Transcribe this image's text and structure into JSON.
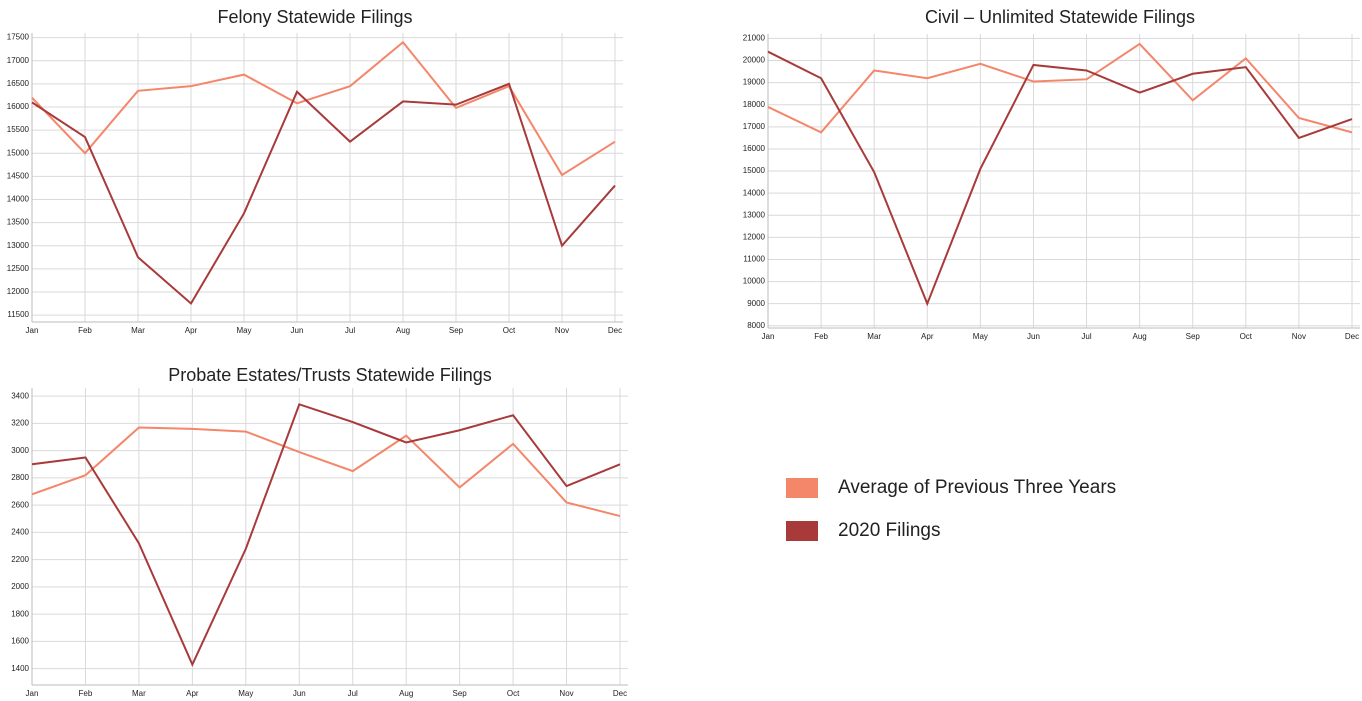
{
  "chart_data": [
    {
      "type": "line",
      "title": "Felony Statewide Filings",
      "categories": [
        "Jan",
        "Feb",
        "Mar",
        "Apr",
        "May",
        "Jun",
        "Jul",
        "Aug",
        "Sep",
        "Oct",
        "Nov",
        "Dec"
      ],
      "series": [
        {
          "name": "Average of Previous Three Years",
          "color": "#f4866a",
          "values": [
            16200,
            15000,
            16350,
            16450,
            16700,
            16080,
            16450,
            17400,
            15980,
            16450,
            14530,
            15250
          ]
        },
        {
          "name": "2020 Filings",
          "color": "#a83a3a",
          "values": [
            16100,
            15350,
            12750,
            11750,
            13700,
            16330,
            15250,
            16120,
            16050,
            16500,
            13000,
            14300
          ]
        }
      ],
      "ylim": [
        11350,
        17600
      ],
      "yticks": [
        11500,
        12000,
        12500,
        13000,
        13500,
        14000,
        14500,
        15000,
        15500,
        16000,
        16500,
        17000,
        17500
      ],
      "grid": true
    },
    {
      "type": "line",
      "title": "Civil – Unlimited Statewide Filings",
      "categories": [
        "Jan",
        "Feb",
        "Mar",
        "Apr",
        "May",
        "Jun",
        "Jul",
        "Aug",
        "Sep",
        "Oct",
        "Nov",
        "Dec"
      ],
      "series": [
        {
          "color": "#f4866a",
          "values": [
            17900,
            16750,
            19550,
            19200,
            19850,
            19050,
            19150,
            20750,
            18200,
            20100,
            17400,
            16750
          ]
        },
        {
          "color": "#a83a3a",
          "values": [
            20400,
            19200,
            14950,
            9000,
            15100,
            19800,
            19550,
            18550,
            19400,
            19700,
            16500,
            17350
          ]
        }
      ],
      "ylim": [
        7900,
        21200
      ],
      "yticks": [
        8000,
        9000,
        10000,
        11000,
        12000,
        13000,
        14000,
        15000,
        16000,
        17000,
        18000,
        19000,
        20000,
        21000
      ],
      "grid": true
    },
    {
      "type": "line",
      "title": "Probate Estates/Trusts Statewide Filings",
      "categories": [
        "Jan",
        "Feb",
        "Mar",
        "Apr",
        "May",
        "Jun",
        "Jul",
        "Aug",
        "Sep",
        "Oct",
        "Nov",
        "Dec"
      ],
      "series": [
        {
          "color": "#f4866a",
          "values": [
            2680,
            2820,
            3170,
            3160,
            3140,
            2990,
            2850,
            3110,
            2730,
            3050,
            2620,
            2520
          ]
        },
        {
          "color": "#a83a3a",
          "values": [
            2900,
            2950,
            2320,
            1430,
            2280,
            3340,
            3210,
            3060,
            3150,
            3260,
            2740,
            2900
          ]
        }
      ],
      "ylim": [
        1280,
        3460
      ],
      "yticks": [
        1400,
        1600,
        1800,
        2000,
        2200,
        2400,
        2600,
        2800,
        3000,
        3200,
        3400
      ],
      "grid": true
    }
  ]
}
